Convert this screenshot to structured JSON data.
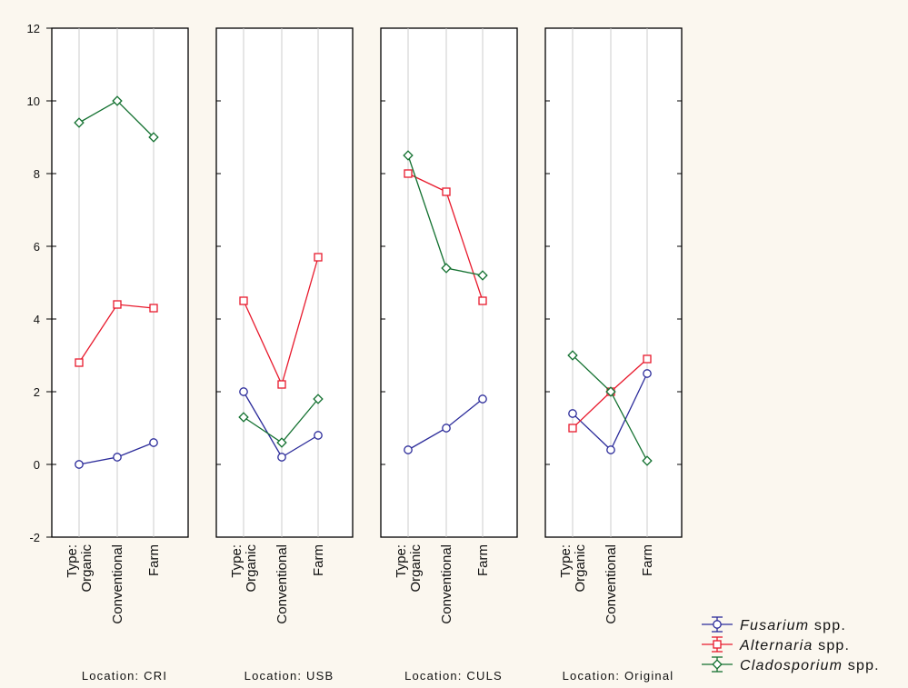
{
  "chart_data": {
    "type": "line",
    "ylim": [
      -2,
      12
    ],
    "y_ticks": [
      -2,
      0,
      2,
      4,
      6,
      8,
      10,
      12
    ],
    "categories": [
      "Type:\nOrganic",
      "Conventional",
      "Farm"
    ],
    "panels": [
      {
        "location_label": "Location: CRI",
        "series": [
          {
            "name": "Fusarium spp.",
            "values": [
              0.0,
              0.2,
              0.6
            ]
          },
          {
            "name": "Alternaria spp.",
            "values": [
              2.8,
              4.4,
              4.3
            ]
          },
          {
            "name": "Cladosporium spp.",
            "values": [
              9.4,
              10.0,
              9.0
            ]
          }
        ]
      },
      {
        "location_label": "Location: USB",
        "series": [
          {
            "name": "Fusarium spp.",
            "values": [
              2.0,
              0.2,
              0.8
            ]
          },
          {
            "name": "Alternaria spp.",
            "values": [
              4.5,
              2.2,
              5.7
            ]
          },
          {
            "name": "Cladosporium spp.",
            "values": [
              1.3,
              0.6,
              1.8
            ]
          }
        ]
      },
      {
        "location_label": "Location: CULS",
        "series": [
          {
            "name": "Fusarium spp.",
            "values": [
              0.4,
              1.0,
              1.8
            ]
          },
          {
            "name": "Alternaria spp.",
            "values": [
              8.0,
              7.5,
              4.5
            ]
          },
          {
            "name": "Cladosporium spp.",
            "values": [
              8.5,
              5.4,
              5.2
            ]
          }
        ]
      },
      {
        "location_label": "Location: Original",
        "series": [
          {
            "name": "Fusarium spp.",
            "values": [
              1.4,
              0.4,
              2.5
            ]
          },
          {
            "name": "Alternaria spp.",
            "values": [
              1.0,
              2.0,
              2.9
            ]
          },
          {
            "name": "Cladosporium spp.",
            "values": [
              3.0,
              2.0,
              0.1
            ]
          }
        ]
      }
    ],
    "legend": [
      {
        "genus": "Fusarium",
        "suffix": " spp.",
        "color": "#2b2b9a",
        "marker": "circle"
      },
      {
        "genus": "Alternaria",
        "suffix": " spp.",
        "color": "#e8192c",
        "marker": "square"
      },
      {
        "genus": "Cladosporium",
        "suffix": " spp.",
        "color": "#12702f",
        "marker": "diamond"
      }
    ],
    "legend_placement": "bottom-right",
    "grid": true,
    "colors": {
      "Fusarium spp.": "#2b2b9a",
      "Alternaria spp.": "#e8192c",
      "Cladosporium spp.": "#12702f"
    }
  }
}
